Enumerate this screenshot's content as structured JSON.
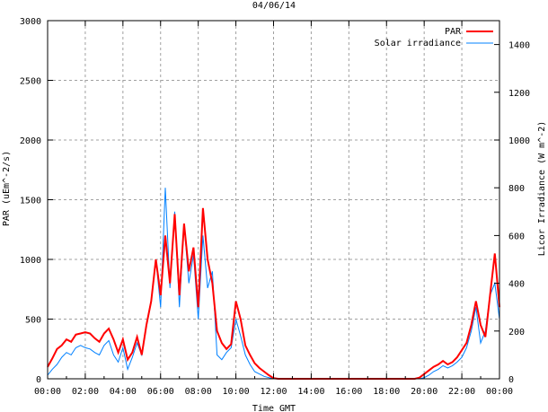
{
  "chart_data": {
    "type": "line",
    "title": "04/06/14",
    "xlabel": "Time GMT",
    "ylabel": "PAR (uEm^-2/s)",
    "y2label": "Licor Irradiance (W m^-2)",
    "xlim_hours": [
      0,
      24
    ],
    "ylim": [
      0,
      3000
    ],
    "y2lim": [
      0,
      1500
    ],
    "x_ticks": [
      "00:00",
      "02:00",
      "04:00",
      "06:00",
      "08:00",
      "10:00",
      "12:00",
      "14:00",
      "16:00",
      "18:00",
      "20:00",
      "22:00",
      "00:00"
    ],
    "y_ticks": [
      "0",
      "500",
      "1000",
      "1500",
      "2000",
      "2500",
      "3000"
    ],
    "y2_ticks": [
      "0",
      "200",
      "400",
      "600",
      "800",
      "1000",
      "1200",
      "1400"
    ],
    "grid": true,
    "legend_placement": "top-right",
    "x_start_hours": 0,
    "x_step_hours": 0.25,
    "series": [
      {
        "name": "PAR",
        "axis": "left",
        "color": "#ff0000",
        "values": [
          100,
          170,
          250,
          280,
          330,
          310,
          370,
          380,
          390,
          380,
          340,
          310,
          380,
          420,
          330,
          220,
          330,
          160,
          220,
          350,
          200,
          450,
          650,
          1000,
          700,
          1200,
          800,
          1380,
          700,
          1300,
          900,
          1100,
          600,
          1430,
          1000,
          800,
          400,
          300,
          250,
          290,
          650,
          500,
          280,
          200,
          130,
          90,
          60,
          30,
          5,
          0,
          0,
          0,
          0,
          0,
          0,
          0,
          0,
          0,
          0,
          0,
          0,
          0,
          0,
          0,
          0,
          0,
          0,
          0,
          0,
          0,
          0,
          0,
          0,
          0,
          0,
          0,
          0,
          0,
          0,
          10,
          40,
          70,
          100,
          120,
          150,
          120,
          140,
          180,
          240,
          300,
          450,
          650,
          450,
          350,
          700,
          1050,
          600
        ]
      },
      {
        "name": "Solar irradiance",
        "axis": "right",
        "color": "#0080ff",
        "values": [
          15,
          40,
          60,
          90,
          110,
          100,
          130,
          140,
          130,
          125,
          110,
          100,
          140,
          160,
          100,
          70,
          130,
          40,
          90,
          150,
          100,
          230,
          330,
          500,
          300,
          800,
          380,
          700,
          300,
          650,
          400,
          520,
          250,
          600,
          380,
          450,
          100,
          80,
          110,
          130,
          250,
          180,
          100,
          60,
          30,
          20,
          10,
          5,
          0,
          0,
          0,
          0,
          0,
          0,
          0,
          0,
          0,
          0,
          0,
          0,
          0,
          0,
          0,
          0,
          0,
          0,
          0,
          0,
          0,
          0,
          0,
          0,
          0,
          0,
          0,
          0,
          0,
          0,
          0,
          0,
          5,
          15,
          30,
          40,
          55,
          45,
          55,
          70,
          90,
          130,
          200,
          300,
          150,
          200,
          350,
          400,
          250
        ]
      }
    ]
  }
}
